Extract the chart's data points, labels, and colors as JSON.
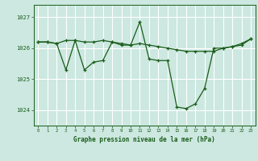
{
  "title": "Graphe pression niveau de la mer (hPa)",
  "bg_color": "#cce8e0",
  "plot_bg_color": "#cce8e0",
  "grid_color": "#ffffff",
  "line_color": "#1a5c1a",
  "marker_color": "#1a5c1a",
  "xlim": [
    -0.5,
    23.5
  ],
  "ylim": [
    1023.5,
    1027.4
  ],
  "yticks": [
    1024,
    1025,
    1026,
    1027
  ],
  "xticks": [
    0,
    1,
    2,
    3,
    4,
    5,
    6,
    7,
    8,
    9,
    10,
    11,
    12,
    13,
    14,
    15,
    16,
    17,
    18,
    19,
    20,
    21,
    22,
    23
  ],
  "series1_x": [
    0,
    1,
    2,
    3,
    4,
    5,
    6,
    7,
    8,
    9,
    10,
    11,
    12,
    13,
    14,
    15,
    16,
    17,
    18,
    19,
    20,
    21,
    22,
    23
  ],
  "series1_y": [
    1026.2,
    1026.2,
    1026.15,
    1026.25,
    1026.25,
    1026.2,
    1026.2,
    1026.25,
    1026.2,
    1026.15,
    1026.1,
    1026.15,
    1026.1,
    1026.05,
    1026.0,
    1025.95,
    1025.9,
    1025.9,
    1025.9,
    1025.9,
    1026.0,
    1026.05,
    1026.15,
    1026.3
  ],
  "series2_x": [
    0,
    1,
    2,
    3,
    4,
    5,
    6,
    7,
    8,
    9,
    10,
    11,
    12,
    13,
    14,
    15,
    16,
    17,
    18,
    19,
    20,
    21,
    22,
    23
  ],
  "series2_y": [
    1026.2,
    1026.2,
    1026.15,
    1025.3,
    1026.25,
    1025.3,
    1025.55,
    1025.6,
    1026.2,
    1026.1,
    1026.1,
    1026.85,
    1025.65,
    1025.6,
    1025.6,
    1024.1,
    1024.05,
    1024.2,
    1024.7,
    1026.0,
    1026.0,
    1026.05,
    1026.1,
    1026.3
  ]
}
